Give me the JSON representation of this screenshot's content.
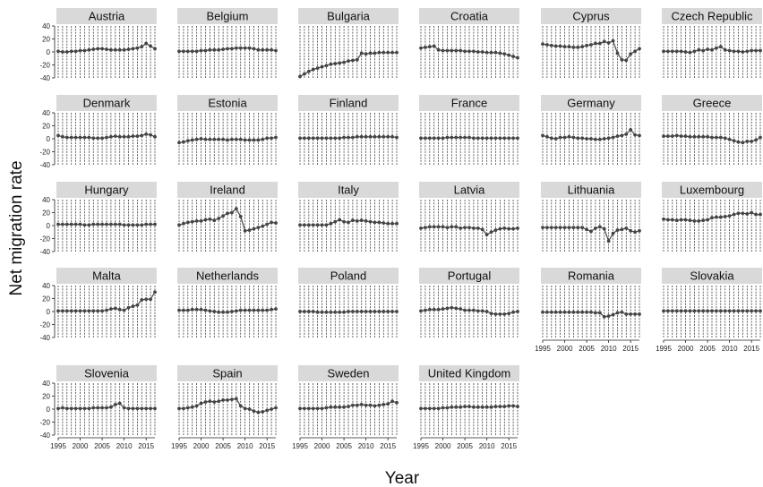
{
  "chart_data": {
    "type": "scatter",
    "xlabel": "Year",
    "ylabel": "Net migration rate",
    "xlim": [
      1995,
      2017
    ],
    "ylim": [
      -40,
      40
    ],
    "x_ticks": [
      "1995",
      "2000",
      "2005",
      "2010",
      "2015"
    ],
    "y_ticks": [
      "-40",
      "-20",
      "0",
      "20",
      "40"
    ],
    "x": [
      1995,
      1996,
      1997,
      1998,
      1999,
      2000,
      2001,
      2002,
      2003,
      2004,
      2005,
      2006,
      2007,
      2008,
      2009,
      2010,
      2011,
      2012,
      2013,
      2014,
      2015,
      2016,
      2017
    ],
    "colors": {
      "marker": "#444444",
      "line": "#444444",
      "strip": "#d9d9d9",
      "vline": "#222222"
    },
    "series": [
      {
        "name": "Austria",
        "values": [
          1,
          0,
          0,
          1,
          1,
          2,
          2,
          3,
          4,
          5,
          5,
          4,
          3,
          3,
          3,
          3,
          4,
          5,
          6,
          8,
          13,
          9,
          5
        ]
      },
      {
        "name": "Belgium",
        "values": [
          1,
          1,
          1,
          1,
          1,
          2,
          2,
          3,
          3,
          3,
          4,
          5,
          5,
          6,
          6,
          6,
          6,
          5,
          3,
          3,
          3,
          3,
          2
        ]
      },
      {
        "name": "Bulgaria",
        "values": [
          -38,
          -34,
          -30,
          -27,
          -25,
          -23,
          -21,
          -19,
          -18,
          -17,
          -16,
          -14,
          -13,
          -12,
          -2,
          -3,
          -2,
          -2,
          -1,
          -1,
          -1,
          -1,
          -1
        ]
      },
      {
        "name": "Croatia",
        "values": [
          6,
          7,
          8,
          9,
          3,
          2,
          2,
          2,
          2,
          2,
          1,
          1,
          1,
          0,
          0,
          -1,
          -1,
          -1,
          -2,
          -3,
          -5,
          -7,
          -9
        ]
      },
      {
        "name": "Cyprus",
        "values": [
          12,
          11,
          10,
          9,
          9,
          8,
          8,
          7,
          7,
          8,
          10,
          11,
          13,
          13,
          16,
          14,
          17,
          -2,
          -12,
          -13,
          -3,
          1,
          5
        ]
      },
      {
        "name": "Czech Republic",
        "values": [
          1,
          1,
          1,
          1,
          1,
          0,
          -1,
          1,
          3,
          2,
          4,
          3,
          6,
          8,
          3,
          2,
          1,
          1,
          0,
          1,
          2,
          2,
          2
        ]
      },
      {
        "name": "Denmark",
        "values": [
          5,
          3,
          2,
          2,
          2,
          2,
          2,
          2,
          1,
          1,
          1,
          2,
          3,
          4,
          3,
          3,
          3,
          4,
          4,
          5,
          7,
          6,
          3
        ]
      },
      {
        "name": "Estonia",
        "values": [
          -6,
          -5,
          -3,
          -2,
          -1,
          0,
          -1,
          -1,
          -1,
          -1,
          -1,
          -2,
          -1,
          -1,
          -1,
          -2,
          -2,
          -2,
          -2,
          -1,
          1,
          1,
          2
        ]
      },
      {
        "name": "Finland",
        "values": [
          1,
          1,
          1,
          1,
          1,
          1,
          1,
          1,
          1,
          1,
          2,
          2,
          2,
          3,
          3,
          3,
          3,
          3,
          3,
          3,
          3,
          3,
          2
        ]
      },
      {
        "name": "France",
        "values": [
          1,
          1,
          1,
          1,
          1,
          1,
          2,
          2,
          2,
          2,
          2,
          2,
          1,
          1,
          1,
          1,
          1,
          1,
          1,
          1,
          1,
          1,
          1
        ]
      },
      {
        "name": "Germany",
        "values": [
          5,
          3,
          1,
          0,
          2,
          2,
          3,
          2,
          1,
          1,
          0,
          0,
          -1,
          -1,
          0,
          1,
          2,
          4,
          5,
          7,
          14,
          6,
          5
        ]
      },
      {
        "name": "Greece",
        "values": [
          4,
          4,
          4,
          5,
          4,
          4,
          3,
          3,
          3,
          3,
          3,
          2,
          2,
          2,
          1,
          -1,
          -3,
          -5,
          -6,
          -4,
          -4,
          -2,
          2
        ]
      },
      {
        "name": "Hungary",
        "values": [
          2,
          2,
          2,
          2,
          2,
          2,
          1,
          1,
          2,
          2,
          2,
          2,
          2,
          2,
          2,
          1,
          1,
          1,
          1,
          1,
          2,
          2,
          2
        ]
      },
      {
        "name": "Ireland",
        "values": [
          1,
          3,
          5,
          6,
          7,
          7,
          9,
          10,
          8,
          11,
          15,
          19,
          20,
          26,
          14,
          -8,
          -7,
          -5,
          -3,
          -1,
          2,
          5,
          4
        ]
      },
      {
        "name": "Italy",
        "values": [
          1,
          1,
          1,
          1,
          1,
          1,
          1,
          3,
          6,
          9,
          6,
          5,
          8,
          7,
          8,
          7,
          6,
          5,
          5,
          4,
          3,
          3,
          3
        ]
      },
      {
        "name": "Latvia",
        "values": [
          -4,
          -3,
          -2,
          -2,
          -2,
          -2,
          -3,
          -2,
          -2,
          -4,
          -3,
          -3,
          -4,
          -4,
          -6,
          -14,
          -10,
          -7,
          -5,
          -4,
          -5,
          -5,
          -4
        ]
      },
      {
        "name": "Lithuania",
        "values": [
          -3,
          -3,
          -3,
          -3,
          -3,
          -3,
          -3,
          -3,
          -3,
          -3,
          -6,
          -9,
          -4,
          -2,
          -5,
          -24,
          -12,
          -7,
          -6,
          -4,
          -8,
          -10,
          -8
        ]
      },
      {
        "name": "Luxembourg",
        "values": [
          10,
          9,
          9,
          8,
          9,
          9,
          8,
          7,
          7,
          8,
          9,
          12,
          13,
          13,
          14,
          15,
          17,
          19,
          19,
          18,
          20,
          17,
          17
        ]
      },
      {
        "name": "Malta",
        "values": [
          1,
          1,
          1,
          1,
          1,
          1,
          1,
          1,
          1,
          1,
          1,
          2,
          4,
          5,
          3,
          2,
          6,
          8,
          10,
          18,
          19,
          19,
          30
        ]
      },
      {
        "name": "Netherlands",
        "values": [
          2,
          2,
          2,
          3,
          3,
          3,
          2,
          1,
          0,
          -1,
          -1,
          -1,
          0,
          1,
          2,
          2,
          2,
          2,
          2,
          2,
          2,
          3,
          4
        ]
      },
      {
        "name": "Poland",
        "values": [
          0,
          0,
          0,
          0,
          -1,
          -1,
          -1,
          -1,
          -1,
          -1,
          -1,
          0,
          0,
          0,
          0,
          0,
          0,
          0,
          0,
          0,
          0,
          0,
          0
        ]
      },
      {
        "name": "Portugal",
        "values": [
          1,
          2,
          3,
          3,
          3,
          4,
          5,
          6,
          5,
          4,
          2,
          2,
          2,
          1,
          1,
          0,
          -3,
          -4,
          -4,
          -4,
          -3,
          -1,
          0
        ]
      },
      {
        "name": "Romania",
        "values": [
          -1,
          -1,
          -1,
          -1,
          -1,
          -1,
          -1,
          -1,
          -1,
          -1,
          -1,
          -1,
          -2,
          -2,
          -8,
          -7,
          -5,
          -2,
          -1,
          -4,
          -4,
          -4,
          -4
        ]
      },
      {
        "name": "Slovakia",
        "values": [
          1,
          1,
          1,
          1,
          1,
          1,
          1,
          1,
          1,
          1,
          1,
          1,
          1,
          1,
          1,
          1,
          1,
          1,
          1,
          1,
          1,
          1,
          1
        ]
      },
      {
        "name": "Slovenia",
        "values": [
          1,
          2,
          1,
          1,
          1,
          1,
          1,
          1,
          2,
          2,
          2,
          2,
          3,
          7,
          9,
          2,
          1,
          1,
          1,
          1,
          1,
          1,
          1
        ]
      },
      {
        "name": "Spain",
        "values": [
          1,
          1,
          2,
          3,
          5,
          9,
          11,
          12,
          11,
          12,
          14,
          14,
          15,
          16,
          5,
          1,
          0,
          -3,
          -5,
          -4,
          -2,
          0,
          2
        ]
      },
      {
        "name": "Sweden",
        "values": [
          1,
          1,
          1,
          1,
          1,
          1,
          2,
          3,
          3,
          3,
          3,
          4,
          6,
          6,
          7,
          6,
          6,
          5,
          6,
          7,
          8,
          12,
          10
        ]
      },
      {
        "name": "United Kingdom",
        "values": [
          1,
          1,
          1,
          1,
          1,
          2,
          2,
          3,
          3,
          3,
          4,
          4,
          3,
          3,
          3,
          3,
          3,
          4,
          4,
          4,
          5,
          5,
          4
        ]
      }
    ]
  }
}
